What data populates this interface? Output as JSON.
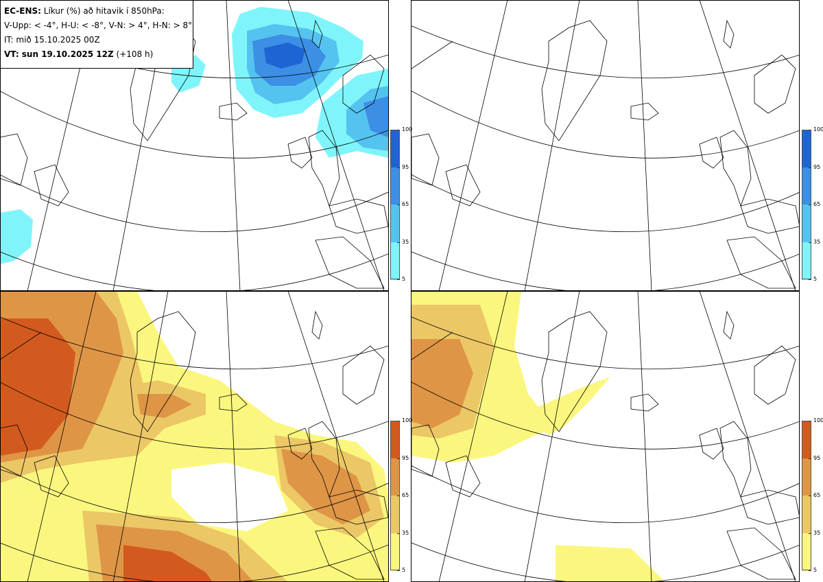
{
  "header": {
    "product": "EC-ENS:",
    "description": "Líkur (%) að hitavik í 850hPa:",
    "classes": "V-Upp: < -4°, H-U: < -8°, V-N: > 4°, H-N: > 8°",
    "init_time": "IT: mið 15.10.2025 00Z",
    "valid_prefix": "VT: sun 19.10.2025 12Z",
    "valid_lead": "(+108 h)"
  },
  "panels": [
    {
      "name": "V-Upp",
      "palette": "blue"
    },
    {
      "name": "H-U",
      "palette": "blue"
    },
    {
      "name": "V-N",
      "palette": "warm"
    },
    {
      "name": "H-N",
      "palette": "warm"
    }
  ],
  "colorbar": {
    "ticks": [
      "100",
      "95",
      "65",
      "35",
      "5"
    ],
    "blue_colors": [
      "#1f64d4",
      "#3c8fe4",
      "#55c3f0",
      "#7ff5fb"
    ],
    "warm_colors": [
      "#d35a1e",
      "#df9546",
      "#ecc766",
      "#fbf77e"
    ]
  }
}
